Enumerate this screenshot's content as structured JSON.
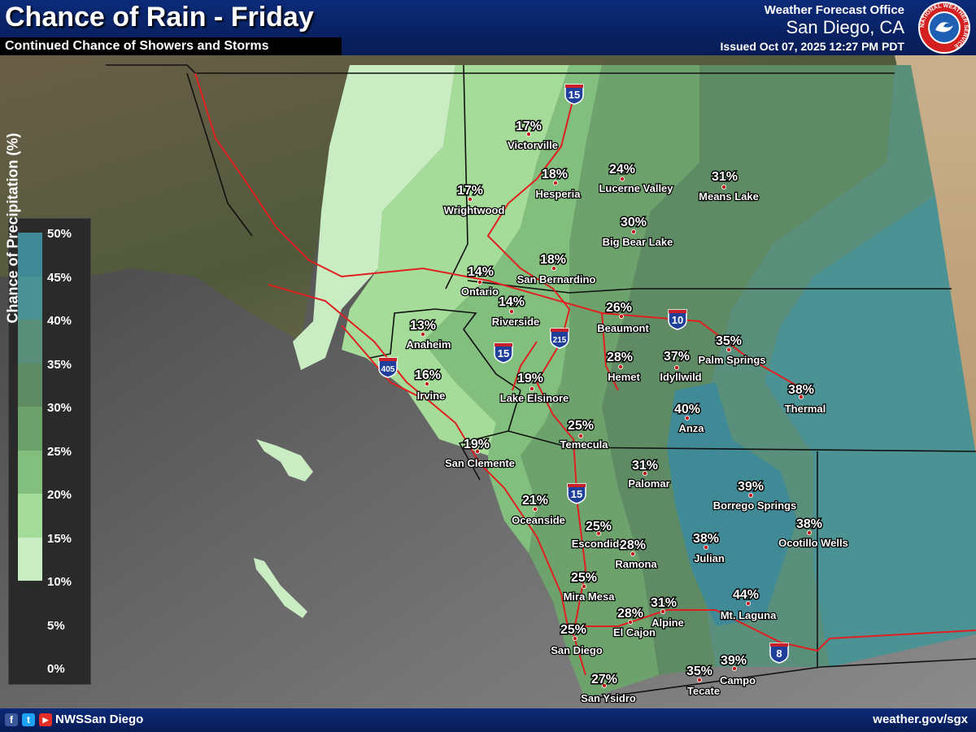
{
  "header": {
    "title": "Chance of Rain - Friday",
    "subtitle": "Continued Chance of Showers and Storms",
    "office_line1": "Weather Forecast Office",
    "office_line2": "San Diego, CA",
    "issued": "Issued Oct 07, 2025 12:27 PM PDT",
    "logo_text": "NATIONAL WEATHER SERVICE"
  },
  "legend": {
    "title": "Chance of Precipitation (%)",
    "labels": [
      "50%",
      "45%",
      "40%",
      "35%",
      "30%",
      "25%",
      "20%",
      "15%",
      "10%",
      "5%",
      "0%"
    ],
    "bands": [
      {
        "min": 45,
        "max": 50,
        "color": "#3f8a96"
      },
      {
        "min": 40,
        "max": 45,
        "color": "#4a9294"
      },
      {
        "min": 35,
        "max": 40,
        "color": "#5a8f7c"
      },
      {
        "min": 30,
        "max": 35,
        "color": "#5e8b64"
      },
      {
        "min": 25,
        "max": 30,
        "color": "#6da26c"
      },
      {
        "min": 20,
        "max": 25,
        "color": "#82bf7e"
      },
      {
        "min": 15,
        "max": 20,
        "color": "#a6dc9a"
      },
      {
        "min": 10,
        "max": 15,
        "color": "#c9ecc2"
      }
    ]
  },
  "highways": [
    "15",
    "10",
    "215",
    "15",
    "405",
    "15",
    "8"
  ],
  "locations": [
    {
      "name": "Victorville",
      "pct": "17%"
    },
    {
      "name": "Hesperia",
      "pct": "18%"
    },
    {
      "name": "Lucerne Valley",
      "pct": "24%"
    },
    {
      "name": "Means Lake",
      "pct": "31%"
    },
    {
      "name": "Wrightwood",
      "pct": "17%"
    },
    {
      "name": "Big Bear Lake",
      "pct": "30%"
    },
    {
      "name": "Ontario",
      "pct": "14%"
    },
    {
      "name": "San Bernardino",
      "pct": "18%"
    },
    {
      "name": "Riverside",
      "pct": "14%"
    },
    {
      "name": "Beaumont",
      "pct": "26%"
    },
    {
      "name": "Anaheim",
      "pct": "13%"
    },
    {
      "name": "Palm Springs",
      "pct": "35%"
    },
    {
      "name": "Hemet",
      "pct": "28%"
    },
    {
      "name": "Idyllwild",
      "pct": "37%"
    },
    {
      "name": "Irvine",
      "pct": "16%"
    },
    {
      "name": "Lake Elsinore",
      "pct": "19%"
    },
    {
      "name": "Thermal",
      "pct": "38%"
    },
    {
      "name": "Anza",
      "pct": "40%"
    },
    {
      "name": "Temecula",
      "pct": "25%"
    },
    {
      "name": "San Clemente",
      "pct": "19%"
    },
    {
      "name": "Palomar",
      "pct": "31%"
    },
    {
      "name": "Borrego Springs",
      "pct": "39%"
    },
    {
      "name": "Oceanside",
      "pct": "21%"
    },
    {
      "name": "Escondido",
      "pct": "25%"
    },
    {
      "name": "Ocotillo Wells",
      "pct": "38%"
    },
    {
      "name": "Ramona",
      "pct": "28%"
    },
    {
      "name": "Julian",
      "pct": "38%"
    },
    {
      "name": "Mira Mesa",
      "pct": "25%"
    },
    {
      "name": "El Cajon",
      "pct": "28%"
    },
    {
      "name": "Alpine",
      "pct": "31%"
    },
    {
      "name": "Mt. Laguna",
      "pct": "44%"
    },
    {
      "name": "San Diego",
      "pct": "25%"
    },
    {
      "name": "Tecate",
      "pct": "35%"
    },
    {
      "name": "Campo",
      "pct": "39%"
    },
    {
      "name": "San Ysidro",
      "pct": "27%"
    }
  ],
  "footer": {
    "facebook": "f",
    "twitter": "t",
    "youtube": "▶",
    "handle": "NWSSan Diego",
    "website": "weather.gov/sgx"
  },
  "colors": {
    "header": "#0b2a78",
    "ocean": "#6a6a6a",
    "road": "#e02020",
    "boundary": "#111111"
  }
}
